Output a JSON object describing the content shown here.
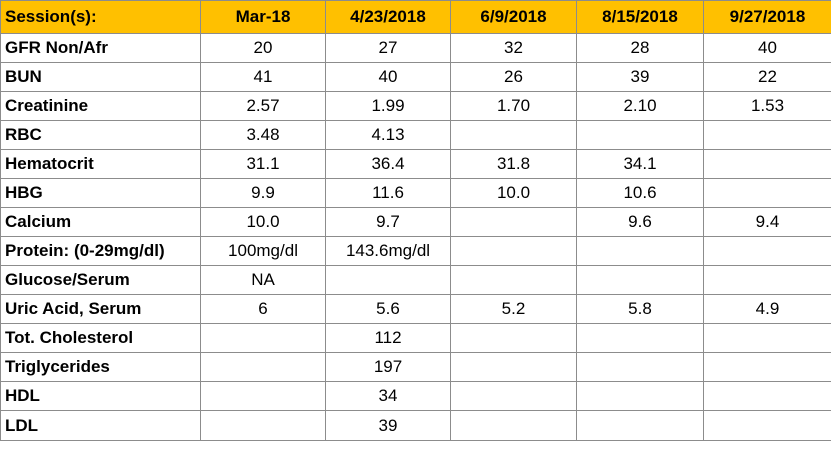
{
  "header": {
    "label": "Session(s):",
    "dates": [
      "Mar-18",
      "4/23/2018",
      "6/9/2018",
      "8/15/2018",
      "9/27/2018"
    ]
  },
  "rows": [
    {
      "label": "GFR Non/Afr",
      "values": [
        "20",
        "27",
        "32",
        "28",
        "40"
      ]
    },
    {
      "label": "BUN",
      "values": [
        "41",
        "40",
        "26",
        "39",
        "22"
      ]
    },
    {
      "label": "Creatinine",
      "values": [
        "2.57",
        "1.99",
        "1.70",
        "2.10",
        "1.53"
      ]
    },
    {
      "label": "RBC",
      "values": [
        "3.48",
        "4.13",
        "",
        "",
        ""
      ]
    },
    {
      "label": "Hematocrit",
      "values": [
        "31.1",
        "36.4",
        "31.8",
        "34.1",
        ""
      ]
    },
    {
      "label": "HBG",
      "values": [
        "9.9",
        "11.6",
        "10.0",
        "10.6",
        ""
      ]
    },
    {
      "label": "Calcium",
      "values": [
        "10.0",
        "9.7",
        "",
        "9.6",
        "9.4"
      ]
    },
    {
      "label": "Protein: (0-29mg/dl)",
      "values": [
        "100mg/dl",
        "143.6mg/dl",
        "",
        "",
        ""
      ]
    },
    {
      "label": "Glucose/Serum",
      "values": [
        "NA",
        "",
        "",
        "",
        ""
      ]
    },
    {
      "label": "Uric Acid, Serum",
      "values": [
        "6",
        "5.6",
        "5.2",
        "5.8",
        "4.9"
      ]
    },
    {
      "label": "Tot. Cholesterol",
      "values": [
        "",
        "112",
        "",
        "",
        ""
      ]
    },
    {
      "label": "Triglycerides",
      "values": [
        "",
        "197",
        "",
        "",
        ""
      ]
    },
    {
      "label": "HDL",
      "values": [
        "",
        "34",
        "",
        "",
        ""
      ]
    },
    {
      "label": "LDL",
      "values": [
        "",
        "39",
        "",
        "",
        ""
      ]
    }
  ],
  "colors": {
    "header_background": "#ffc000",
    "grid_lines": "#8c8c8c"
  }
}
